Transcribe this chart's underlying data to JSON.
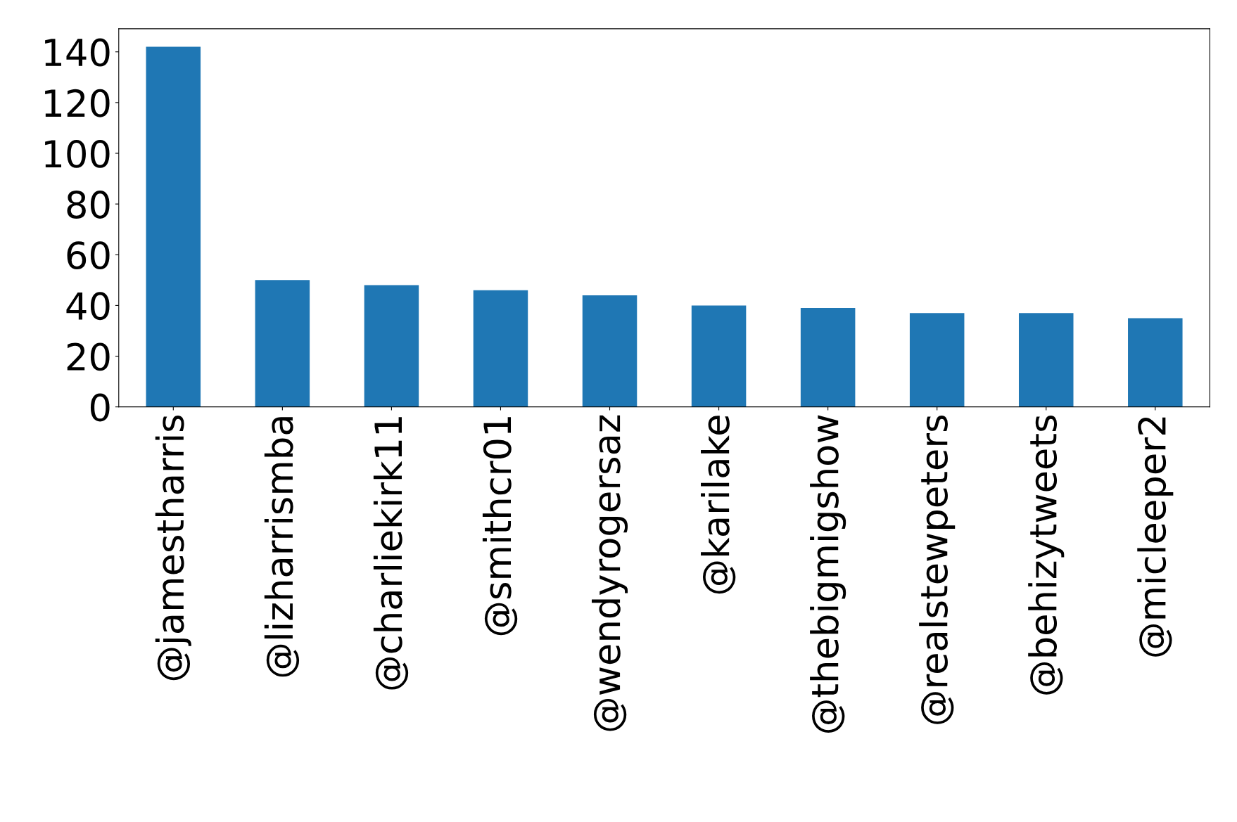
{
  "chart_data": {
    "type": "bar",
    "categories": [
      "@jamestharris",
      "@lizharrismba",
      "@charliekirk11",
      "@smithcr01",
      "@wendyrogersaz",
      "@karilake",
      "@thebigmigshow",
      "@realstewpeters",
      "@behizytweets",
      "@micleeper2"
    ],
    "values": [
      142,
      50,
      48,
      46,
      44,
      40,
      39,
      37,
      37,
      35
    ],
    "color": "#1f77b4",
    "ylim": [
      0,
      149.1
    ],
    "yticks": [
      0,
      20,
      40,
      60,
      80,
      100,
      120,
      140
    ],
    "grid": false,
    "legend": false
  }
}
